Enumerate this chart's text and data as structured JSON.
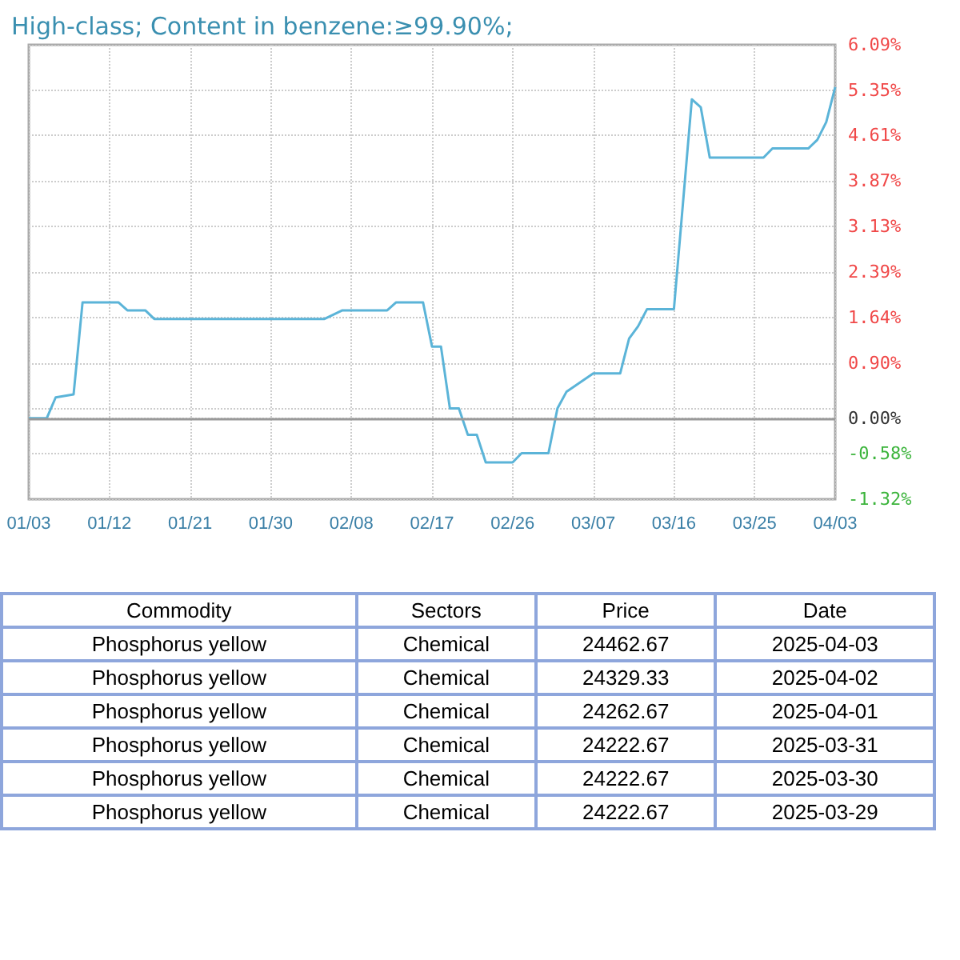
{
  "chart_data": [
    {
      "type": "line",
      "title": "High-class; Content in benzene:≥99.90%;",
      "x": [
        "2025-01-03",
        "2025-01-05",
        "2025-01-06",
        "2025-01-08",
        "2025-01-09",
        "2025-01-13",
        "2025-01-14",
        "2025-01-16",
        "2025-01-17",
        "2025-02-05",
        "2025-02-07",
        "2025-02-12",
        "2025-02-13",
        "2025-02-16",
        "2025-02-17",
        "2025-02-18",
        "2025-02-19",
        "2025-02-20",
        "2025-02-21",
        "2025-02-22",
        "2025-02-23",
        "2025-02-26",
        "2025-02-27",
        "2025-03-02",
        "2025-03-03",
        "2025-03-04",
        "2025-03-07",
        "2025-03-10",
        "2025-03-11",
        "2025-03-12",
        "2025-03-13",
        "2025-03-16",
        "2025-03-18",
        "2025-03-19",
        "2025-03-20",
        "2025-03-26",
        "2025-03-27",
        "2025-03-31",
        "2025-04-01",
        "2025-04-02",
        "2025-04-03"
      ],
      "series": [
        {
          "color": "#5bb4d8",
          "values": [
            0,
            0,
            0.34,
            0.39,
            1.89,
            1.89,
            1.76,
            1.76,
            1.62,
            1.62,
            1.76,
            1.76,
            1.89,
            1.89,
            1.17,
            1.17,
            0.16,
            0.16,
            -0.27,
            -0.27,
            -0.72,
            -0.72,
            -0.57,
            -0.57,
            0.16,
            0.43,
            0.73,
            0.73,
            1.3,
            1.5,
            1.78,
            1.78,
            5.2,
            5.07,
            4.25,
            4.25,
            4.4,
            4.4,
            4.54,
            4.83,
            5.4
          ]
        }
      ],
      "xlim": [
        "2025-01-03",
        "2025-04-03"
      ],
      "xticks": [
        {
          "value": "2025-01-03",
          "label": "01/03"
        },
        {
          "value": "2025-01-12",
          "label": "01/12"
        },
        {
          "value": "2025-01-21",
          "label": "01/21"
        },
        {
          "value": "2025-01-30",
          "label": "01/30"
        },
        {
          "value": "2025-02-08",
          "label": "02/08"
        },
        {
          "value": "2025-02-17",
          "label": "02/17"
        },
        {
          "value": "2025-02-26",
          "label": "02/26"
        },
        {
          "value": "2025-03-07",
          "label": "03/07"
        },
        {
          "value": "2025-03-16",
          "label": "03/16"
        },
        {
          "value": "2025-03-25",
          "label": "03/25"
        },
        {
          "value": "2025-04-03",
          "label": "04/03"
        }
      ],
      "ylim": [
        -1.32,
        6.09
      ],
      "yticks": [
        {
          "value": -1.32,
          "label": "-1.32%"
        },
        {
          "value": -0.58,
          "label": "-0.58%"
        },
        {
          "value": 0,
          "label": "0.00%"
        },
        {
          "value": 0.16,
          "label": null
        },
        {
          "value": 0.9,
          "label": "0.90%"
        },
        {
          "value": 1.64,
          "label": "1.64%"
        },
        {
          "value": 2.39,
          "label": "2.39%"
        },
        {
          "value": 3.13,
          "label": "3.13%"
        },
        {
          "value": 3.87,
          "label": "3.87%"
        },
        {
          "value": 4.61,
          "label": "4.61%"
        },
        {
          "value": 5.35,
          "label": "5.35%"
        },
        {
          "value": 6.09,
          "label": "6.09%"
        }
      ],
      "ref_lines": [
        {
          "axis": "y",
          "value": 0,
          "color": "#999999"
        }
      ],
      "grid": true,
      "marker": "none",
      "line_style": "solid"
    },
    {
      "type": "other",
      "annotations": [
        "Commodity",
        "Sectors",
        "Price",
        "Date",
        "Phosphorus yellow",
        "Chemical",
        "24462.67",
        "2025-04-03",
        "Phosphorus yellow",
        "Chemical",
        "24329.33",
        "2025-04-02",
        "Phosphorus yellow",
        "Chemical",
        "24262.67",
        "2025-04-01",
        "Phosphorus yellow",
        "Chemical",
        "24222.67",
        "2025-03-31",
        "Phosphorus yellow",
        "Chemical",
        "24222.67",
        "2025-03-30",
        "Phosphorus yellow",
        "Chemical",
        "24222.67",
        "2025-03-29"
      ]
    }
  ]
}
